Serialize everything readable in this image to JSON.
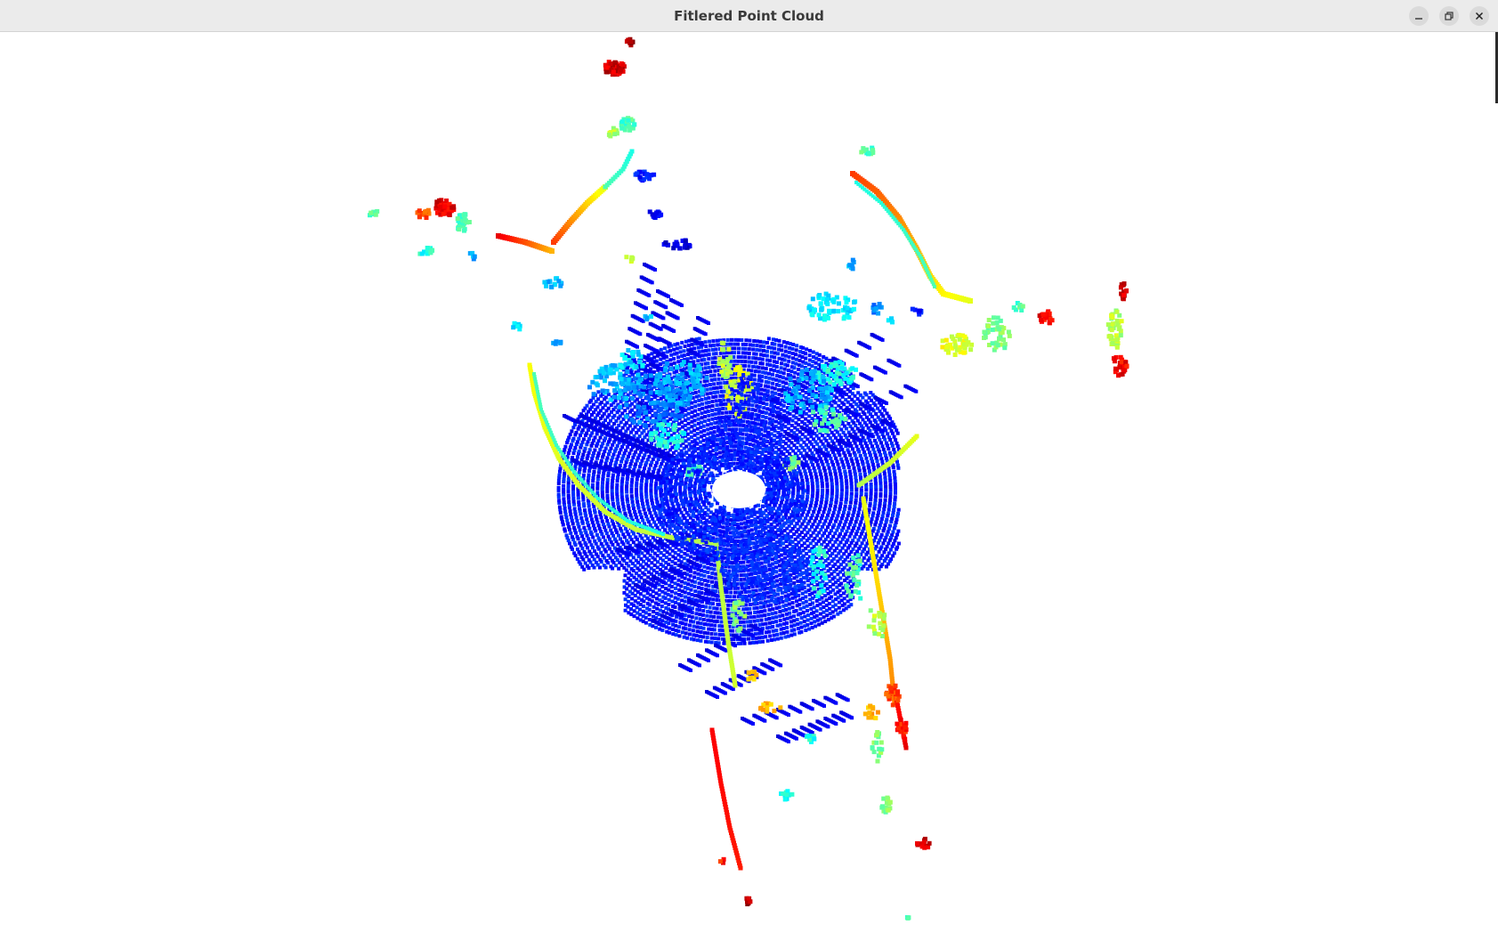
{
  "window": {
    "title": "Fitlered Point Cloud",
    "controls": {
      "minimize": "minimize-icon",
      "maximize": "restore-icon",
      "close": "close-icon"
    }
  },
  "colormap": {
    "name": "jet",
    "stops": [
      "#00008f",
      "#0000ff",
      "#0080ff",
      "#00ffff",
      "#80ff80",
      "#ffff00",
      "#ff8000",
      "#ff0000",
      "#800000"
    ],
    "background": "#ffffff"
  }
}
